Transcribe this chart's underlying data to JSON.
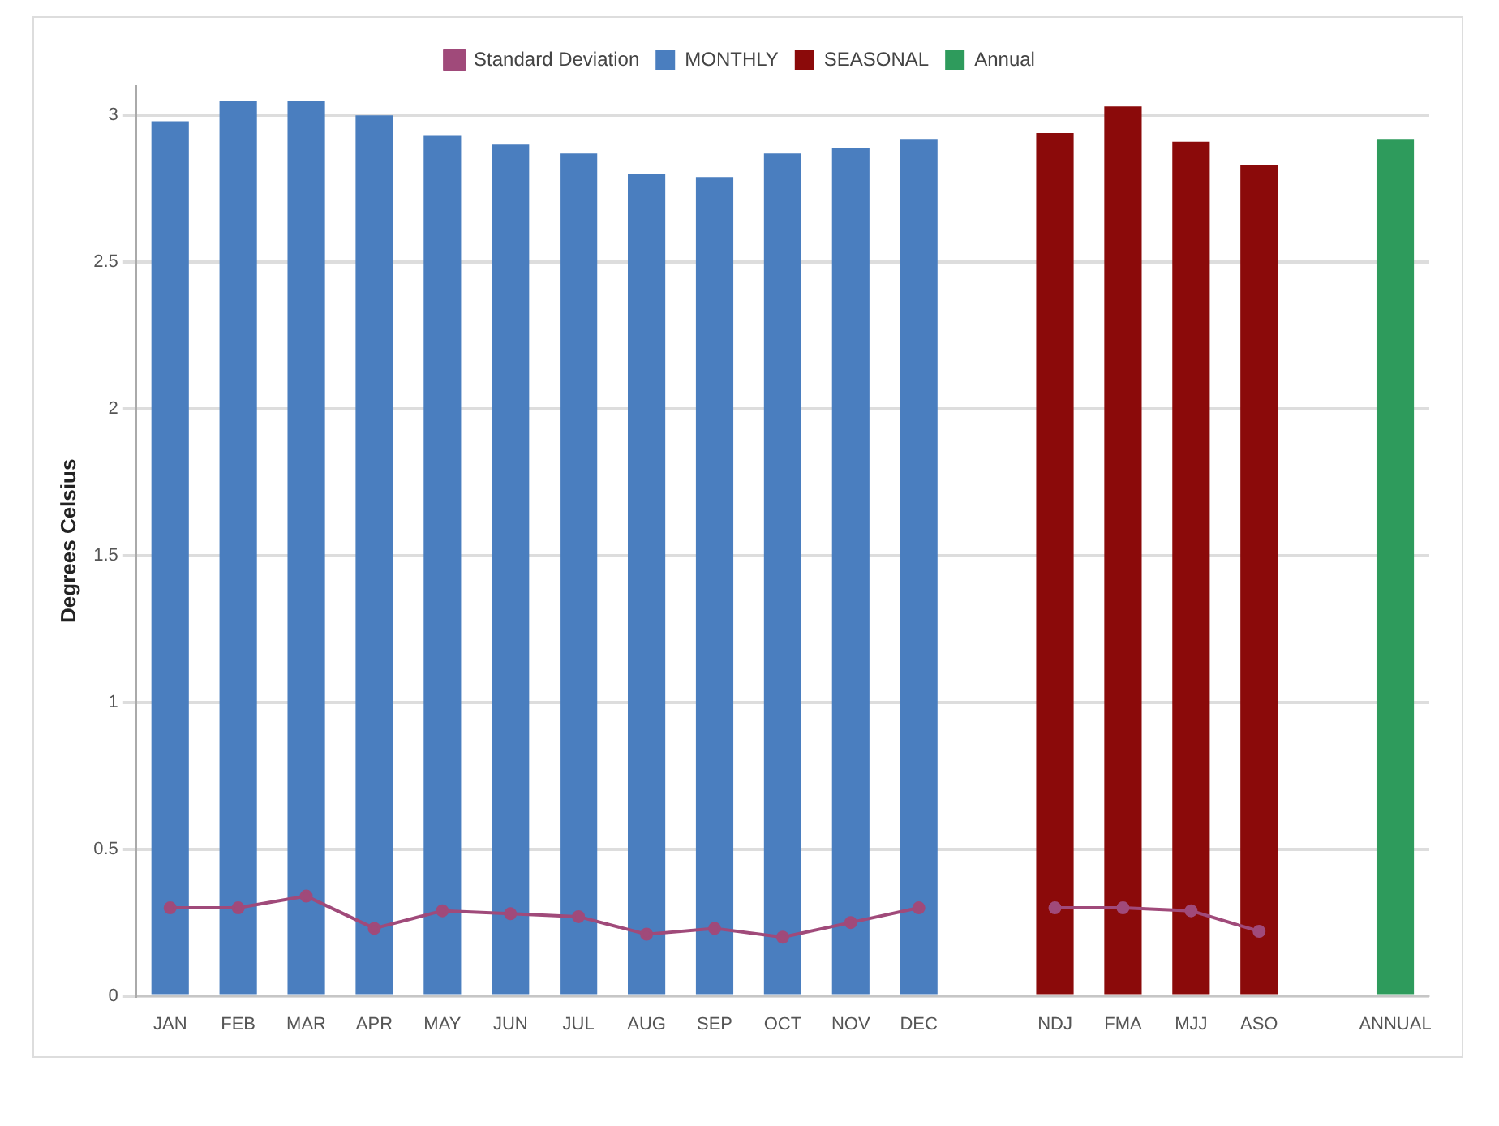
{
  "chart_data": {
    "type": "bar",
    "ylabel": "Degrees Celsius",
    "categories": [
      "JAN",
      "FEB",
      "MAR",
      "APR",
      "MAY",
      "JUN",
      "JUL",
      "AUG",
      "SEP",
      "OCT",
      "NOV",
      "DEC",
      null,
      "NDJ",
      "FMA",
      "MJJ",
      "ASO",
      null,
      "ANNUAL"
    ],
    "series": [
      {
        "name": "MONTHLY",
        "color": "#4a7ebf",
        "values": [
          2.98,
          3.05,
          3.05,
          3.0,
          2.93,
          2.9,
          2.87,
          2.8,
          2.79,
          2.87,
          2.89,
          2.92,
          null,
          null,
          null,
          null,
          null,
          null,
          null
        ]
      },
      {
        "name": "SEASONAL",
        "color": "#8b0a0a",
        "values": [
          null,
          null,
          null,
          null,
          null,
          null,
          null,
          null,
          null,
          null,
          null,
          null,
          null,
          2.94,
          3.03,
          2.91,
          2.83,
          null,
          null
        ]
      },
      {
        "name": "Annual",
        "color": "#2e9b5c",
        "values": [
          null,
          null,
          null,
          null,
          null,
          null,
          null,
          null,
          null,
          null,
          null,
          null,
          null,
          null,
          null,
          null,
          null,
          null,
          2.92
        ]
      },
      {
        "name": "Standard Deviation",
        "type": "line",
        "color": "#a04a7a",
        "values": [
          0.3,
          0.3,
          0.34,
          0.23,
          0.29,
          0.28,
          0.27,
          0.21,
          0.23,
          0.2,
          0.25,
          0.3,
          null,
          0.3,
          0.3,
          0.29,
          0.22,
          null,
          null
        ]
      }
    ],
    "ylim": [
      0,
      3.1
    ],
    "yticks": [
      0,
      0.5,
      1,
      1.5,
      2,
      2.5,
      3
    ],
    "grid": "y",
    "legend": "top",
    "marker": "circle"
  }
}
